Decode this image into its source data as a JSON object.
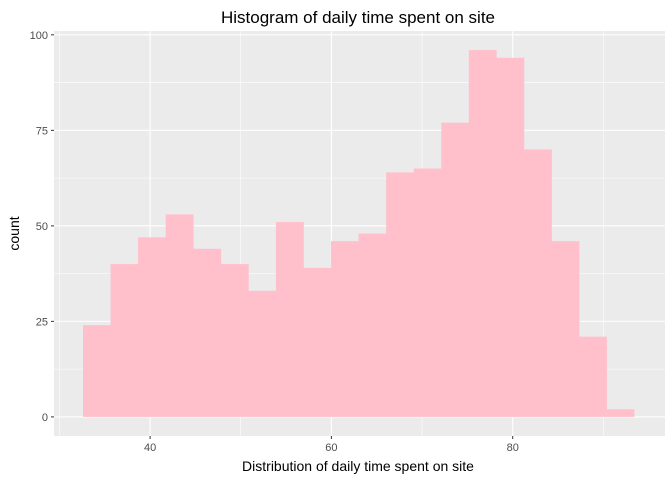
{
  "chart_data": {
    "type": "bar",
    "title": "Histogram of daily time spent on site",
    "xlabel": "Distribution of daily time spent on site",
    "ylabel": "count",
    "xlim": [
      29.4,
      96.8
    ],
    "ylim": [
      -5,
      101
    ],
    "x_ticks": [
      40,
      60,
      80
    ],
    "x_minor_ticks": [
      30,
      50,
      70,
      90
    ],
    "y_ticks": [
      0,
      25,
      50,
      75,
      100
    ],
    "y_minor_ticks": [
      12.5,
      37.5,
      62.5,
      87.5
    ],
    "bin_start": 32.6,
    "bin_width": 3.04,
    "values": [
      24,
      40,
      47,
      53,
      44,
      40,
      33,
      51,
      39,
      46,
      48,
      64,
      65,
      77,
      96,
      94,
      70,
      46,
      21,
      2
    ],
    "bar_color": "#ffc0cb",
    "panel_color": "#ebebeb",
    "grid": true,
    "legend": "none"
  }
}
